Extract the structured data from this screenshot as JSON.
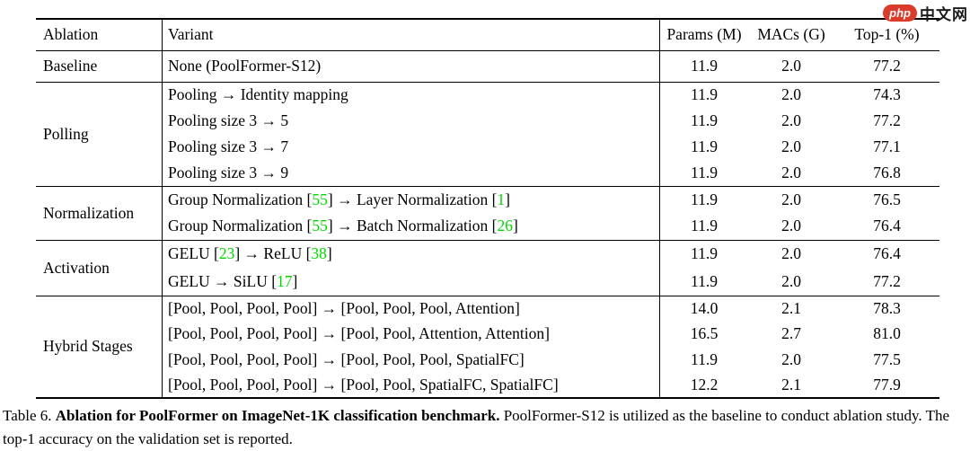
{
  "watermark": {
    "badge": "php",
    "text": "中文网"
  },
  "colors": {
    "citation_green": "#00D900",
    "watermark_red": "#DA3B2B",
    "rule_black": "#000000",
    "background": "#FFFFFF"
  },
  "table": {
    "headers": [
      "Ablation",
      "Variant",
      "Params (M)",
      "MACs (G)",
      "Top-1 (%)"
    ],
    "sections": [
      {
        "ablation": "Baseline",
        "rows": [
          {
            "variant": [
              {
                "text": "None (PoolFormer-S12)"
              }
            ],
            "params": "11.9",
            "macs": "2.0",
            "top1": "77.2"
          }
        ]
      },
      {
        "ablation": "Polling",
        "rows": [
          {
            "variant": [
              {
                "text": "Pooling → Identity mapping"
              }
            ],
            "params": "11.9",
            "macs": "2.0",
            "top1": "74.3"
          },
          {
            "variant": [
              {
                "text": "Pooling size 3 → 5"
              }
            ],
            "params": "11.9",
            "macs": "2.0",
            "top1": "77.2"
          },
          {
            "variant": [
              {
                "text": "Pooling size 3 → 7"
              }
            ],
            "params": "11.9",
            "macs": "2.0",
            "top1": "77.1"
          },
          {
            "variant": [
              {
                "text": "Pooling size 3 → 9"
              }
            ],
            "params": "11.9",
            "macs": "2.0",
            "top1": "76.8"
          }
        ]
      },
      {
        "ablation": "Normalization",
        "rows": [
          {
            "variant": [
              {
                "text": "Group Normalization ["
              },
              {
                "text": "55",
                "green": true
              },
              {
                "text": "] → Layer Normalization ["
              },
              {
                "text": "1",
                "green": true
              },
              {
                "text": "]"
              }
            ],
            "params": "11.9",
            "macs": "2.0",
            "top1": "76.5"
          },
          {
            "variant": [
              {
                "text": "Group Normalization ["
              },
              {
                "text": "55",
                "green": true
              },
              {
                "text": "] → Batch Normalization ["
              },
              {
                "text": "26",
                "green": true
              },
              {
                "text": "]"
              }
            ],
            "params": "11.9",
            "macs": "2.0",
            "top1": "76.4"
          }
        ]
      },
      {
        "ablation": "Activation",
        "rows": [
          {
            "variant": [
              {
                "text": "GELU ["
              },
              {
                "text": "23",
                "green": true
              },
              {
                "text": "] → ReLU ["
              },
              {
                "text": "38",
                "green": true
              },
              {
                "text": "]"
              }
            ],
            "params": "11.9",
            "macs": "2.0",
            "top1": "76.4"
          },
          {
            "variant": [
              {
                "text": "GELU → SiLU ["
              },
              {
                "text": "17",
                "green": true
              },
              {
                "text": "]"
              }
            ],
            "params": "11.9",
            "macs": "2.0",
            "top1": "77.2"
          }
        ]
      },
      {
        "ablation": "Hybrid Stages",
        "rows": [
          {
            "variant": [
              {
                "text": "[Pool, Pool, Pool, Pool] → [Pool, Pool, Pool, Attention]"
              }
            ],
            "params": "14.0",
            "macs": "2.1",
            "top1": "78.3"
          },
          {
            "variant": [
              {
                "text": "[Pool, Pool, Pool, Pool] → [Pool, Pool, Attention, Attention]"
              }
            ],
            "params": "16.5",
            "macs": "2.7",
            "top1": "81.0"
          },
          {
            "variant": [
              {
                "text": "[Pool, Pool, Pool, Pool] → [Pool, Pool, Pool, SpatialFC]"
              }
            ],
            "params": "11.9",
            "macs": "2.0",
            "top1": "77.5"
          },
          {
            "variant": [
              {
                "text": "[Pool, Pool, Pool, Pool] → [Pool, Pool, SpatialFC, SpatialFC]"
              }
            ],
            "params": "12.2",
            "macs": "2.1",
            "top1": "77.9"
          }
        ]
      }
    ]
  },
  "caption": {
    "prefix": "Table 6. ",
    "bold": "Ablation for PoolFormer on ImageNet-1K classification benchmark.",
    "rest": " PoolFormer-S12 is utilized as the baseline to conduct ablation study. The top-1 accuracy on the validation set is reported."
  }
}
